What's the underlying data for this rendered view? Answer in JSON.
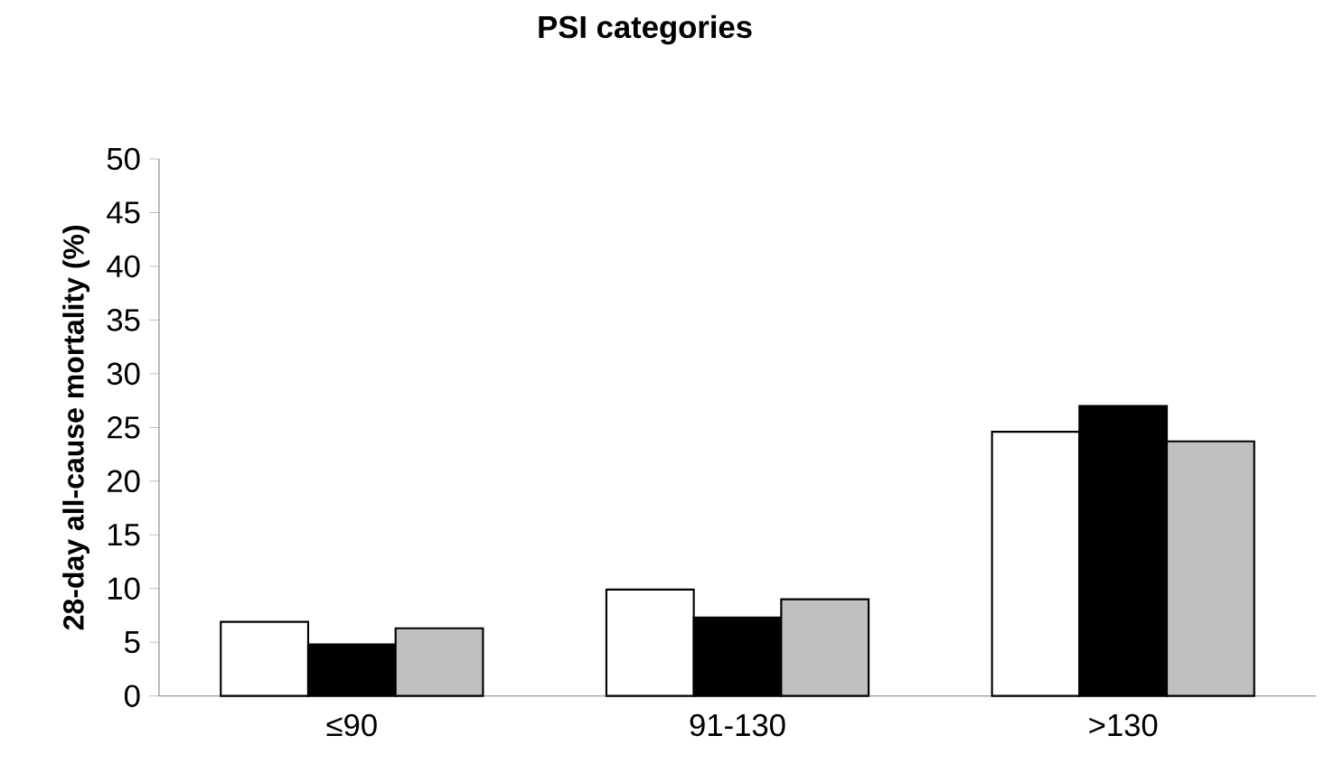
{
  "chart_data": {
    "type": "bar",
    "title": "PSI categories",
    "ylabel": "28-day all-cause mortality (%)",
    "categories": [
      "≤90",
      "91-130",
      ">130"
    ],
    "series": [
      {
        "color": "#ffffff",
        "values": [
          6.9,
          9.9,
          24.6
        ]
      },
      {
        "color": "#000000",
        "values": [
          4.8,
          7.3,
          27.0
        ]
      },
      {
        "color": "#c0c0c0",
        "values": [
          6.3,
          9.0,
          23.7
        ]
      }
    ],
    "ylim": [
      0,
      50
    ],
    "yticks": [
      0,
      5,
      10,
      15,
      20,
      25,
      30,
      35,
      40,
      45,
      50
    ],
    "grid": false
  }
}
